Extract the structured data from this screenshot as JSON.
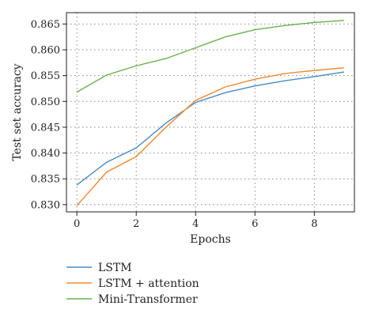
{
  "chart_data": {
    "type": "line",
    "xlabel": "Epochs",
    "ylabel": "Test set accuracy",
    "xlim": [
      -0.35,
      9.35
    ],
    "ylim": [
      0.8286,
      0.8672
    ],
    "xticks": [
      0,
      2,
      4,
      6,
      8
    ],
    "xtick_labels": [
      "0",
      "2",
      "4",
      "6",
      "8"
    ],
    "yticks": [
      0.83,
      0.835,
      0.84,
      0.845,
      0.85,
      0.855,
      0.86,
      0.865
    ],
    "ytick_labels": [
      "0.830",
      "0.835",
      "0.840",
      "0.845",
      "0.850",
      "0.855",
      "0.860",
      "0.865"
    ],
    "grid": true,
    "legend_position": "bottom, below plot",
    "x": [
      0,
      1,
      2,
      3,
      4,
      5,
      6,
      7,
      8,
      9
    ],
    "series": [
      {
        "name": "LSTM",
        "color": "#4a8ac4",
        "values": [
          0.8338,
          0.8382,
          0.841,
          0.8458,
          0.8498,
          0.8517,
          0.853,
          0.854,
          0.8548,
          0.8557
        ]
      },
      {
        "name": "LSTM + attention",
        "color": "#ef8a2e",
        "values": [
          0.8298,
          0.8363,
          0.8393,
          0.845,
          0.8502,
          0.8528,
          0.8543,
          0.8554,
          0.856,
          0.8565
        ]
      },
      {
        "name": "Mini-Transformer",
        "color": "#6ab04c",
        "values": [
          0.8518,
          0.8551,
          0.8569,
          0.8583,
          0.8604,
          0.8625,
          0.8639,
          0.8647,
          0.8653,
          0.8657
        ]
      }
    ]
  }
}
